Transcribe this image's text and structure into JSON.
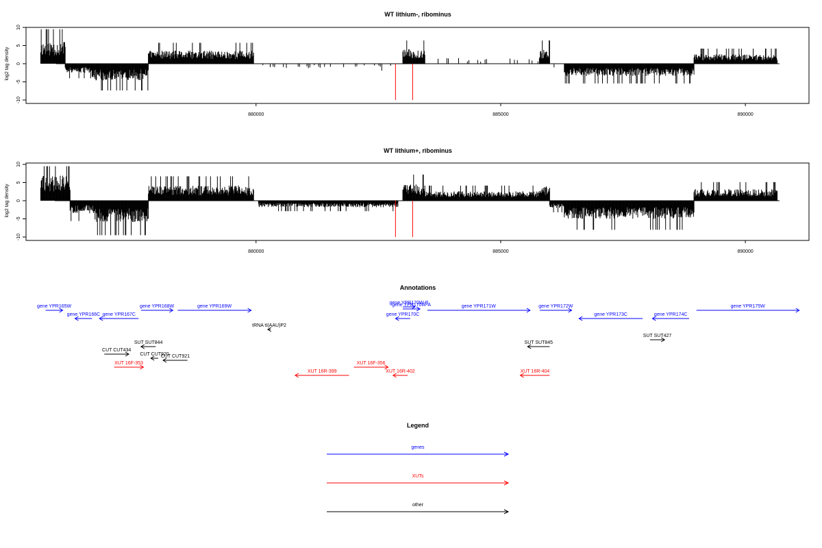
{
  "colors": {
    "genes": "#0000ff",
    "xuts": "#ff0000",
    "other": "#000000",
    "highlight": "#ff0000"
  },
  "chart_data": [
    {
      "type": "bar",
      "panel": "top",
      "title": "WT lithium-, ribominus",
      "xlabel": "",
      "ylabel": "log2 tag density",
      "xlim": [
        875300,
        891300
      ],
      "ylim": [
        -11,
        11
      ],
      "x_ticks": [
        {
          "value": 880000,
          "label": "880000"
        },
        {
          "value": 885000,
          "label": "885000"
        },
        {
          "value": 890000,
          "label": "890000"
        }
      ],
      "y_ticks": [
        {
          "value": 10,
          "label": "10"
        },
        {
          "value": 5,
          "label": "5"
        },
        {
          "value": 0,
          "label": "0"
        },
        {
          "value": -5,
          "label": "-5"
        },
        {
          "value": -10,
          "label": "-10"
        }
      ],
      "segments": [
        {
          "from": 875600,
          "to": 876100,
          "sign": 1,
          "amp": 6.2
        },
        {
          "from": 876100,
          "to": 876650,
          "sign": -1,
          "amp": 2.5
        },
        {
          "from": 876650,
          "to": 877800,
          "sign": -1,
          "amp": 4.6
        },
        {
          "from": 877800,
          "to": 879950,
          "sign": 1,
          "amp": 3.6
        },
        {
          "from": 880050,
          "to": 882900,
          "sign": -1,
          "amp": 1.2,
          "sparse": true
        },
        {
          "from": 883000,
          "to": 883450,
          "sign": 1,
          "amp": 4.0
        },
        {
          "from": 883450,
          "to": 885900,
          "sign": 1,
          "amp": 1.6,
          "sparse": true
        },
        {
          "from": 885800,
          "to": 886000,
          "sign": 1,
          "amp": 4.0
        },
        {
          "from": 886000,
          "to": 886300,
          "sign": -1,
          "amp": 1.5,
          "sparse": true
        },
        {
          "from": 886300,
          "to": 888950,
          "sign": -1,
          "amp": 3.4
        },
        {
          "from": 888950,
          "to": 890650,
          "sign": 1,
          "amp": 2.6
        }
      ],
      "highlights": [
        {
          "x": 882850,
          "y": -10
        },
        {
          "x": 883200,
          "y": -10
        }
      ]
    },
    {
      "type": "bar",
      "panel": "middle",
      "title": "WT lithium+, ribominus",
      "xlabel": "",
      "ylabel": "log2 tag density",
      "xlim": [
        875300,
        891300
      ],
      "ylim": [
        -11,
        11
      ],
      "x_ticks": [
        {
          "value": 880000,
          "label": "880000"
        },
        {
          "value": 885000,
          "label": "885000"
        },
        {
          "value": 890000,
          "label": "890000"
        }
      ],
      "y_ticks": [
        {
          "value": 10,
          "label": "10"
        },
        {
          "value": 5,
          "label": "5"
        },
        {
          "value": 0,
          "label": "0"
        },
        {
          "value": -5,
          "label": "-5"
        },
        {
          "value": -10,
          "label": "-10"
        }
      ],
      "segments": [
        {
          "from": 875600,
          "to": 876200,
          "sign": 1,
          "amp": 7.0
        },
        {
          "from": 876200,
          "to": 876700,
          "sign": -1,
          "amp": 3.5
        },
        {
          "from": 876700,
          "to": 877800,
          "sign": -1,
          "amp": 6.0
        },
        {
          "from": 877800,
          "to": 879950,
          "sign": 1,
          "amp": 4.2
        },
        {
          "from": 880050,
          "to": 882900,
          "sign": -1,
          "amp": 1.8
        },
        {
          "from": 883000,
          "to": 883450,
          "sign": 1,
          "amp": 4.5
        },
        {
          "from": 883450,
          "to": 885900,
          "sign": 1,
          "amp": 2.6
        },
        {
          "from": 885800,
          "to": 886000,
          "sign": 1,
          "amp": 4.0
        },
        {
          "from": 886000,
          "to": 886300,
          "sign": -1,
          "amp": 2.0
        },
        {
          "from": 886300,
          "to": 888950,
          "sign": -1,
          "amp": 5.0
        },
        {
          "from": 888950,
          "to": 890650,
          "sign": 1,
          "amp": 3.2
        }
      ],
      "highlights": [
        {
          "x": 882850,
          "y": -10
        },
        {
          "x": 883200,
          "y": -10
        }
      ]
    }
  ],
  "annotations": {
    "title": "Annotations",
    "features": [
      {
        "label": "gene YPR165W",
        "class": "genes",
        "x1": 875700,
        "x2": 876050,
        "strand": "+",
        "row": 0
      },
      {
        "label": "gene YPR166C",
        "class": "genes",
        "x1": 876300,
        "x2": 876650,
        "strand": "-",
        "row": 1
      },
      {
        "label": "gene YPR167C",
        "class": "genes",
        "x1": 876800,
        "x2": 877600,
        "strand": "-",
        "row": 1
      },
      {
        "label": "gene YPR168W",
        "class": "genes",
        "x1": 877650,
        "x2": 878300,
        "strand": "+",
        "row": 0
      },
      {
        "label": "gene YPR169W",
        "class": "genes",
        "x1": 878400,
        "x2": 879900,
        "strand": "+",
        "row": 0
      },
      {
        "label": "tRNA tI(AAU)P2",
        "class": "other",
        "x1": 880240,
        "x2": 880300,
        "strand": "-",
        "row": 2
      },
      {
        "label": "SUT SUT844",
        "class": "other",
        "x1": 877650,
        "x2": 877950,
        "strand": "-",
        "row": 3
      },
      {
        "label": "CUT CUT434",
        "class": "other",
        "x1": 876900,
        "x2": 877400,
        "strand": "+",
        "row": 4
      },
      {
        "label": "CUT CUT921",
        "class": "other",
        "x1": 878100,
        "x2": 878600,
        "strand": "-",
        "row": 5
      },
      {
        "label": "CUT CUT920",
        "class": "other",
        "x1": 877850,
        "x2": 878000,
        "strand": "-",
        "row": 6
      },
      {
        "label": "XUT 16F-353",
        "class": "xuts",
        "x1": 877100,
        "x2": 877700,
        "strand": "+",
        "row": 7
      },
      {
        "label": "XUT 16R-399",
        "class": "xuts",
        "x1": 880800,
        "x2": 881900,
        "strand": "-",
        "row": 8
      },
      {
        "label": "XUT 16F-356",
        "class": "xuts",
        "x1": 882000,
        "x2": 882700,
        "strand": "+",
        "row": 7
      },
      {
        "label": "XUT 16R-402",
        "class": "xuts",
        "x1": 882800,
        "x2": 883100,
        "strand": "-",
        "row": 8
      },
      {
        "label": "gene YPR170W-A",
        "class": "genes",
        "x1": 883000,
        "x2": 883350,
        "strand": "+",
        "row": 9
      },
      {
        "label": "gene YPR170W-B",
        "class": "genes",
        "x1": 883000,
        "x2": 883250,
        "strand": "+",
        "row": 10
      },
      {
        "label": "gene YPR170C",
        "class": "genes",
        "x1": 882850,
        "x2": 883150,
        "strand": "-",
        "row": 1
      },
      {
        "label": "gene YPR171W",
        "class": "genes",
        "x1": 883500,
        "x2": 885600,
        "strand": "+",
        "row": 0
      },
      {
        "label": "gene YPR172W",
        "class": "genes",
        "x1": 885800,
        "x2": 886450,
        "strand": "+",
        "row": 0
      },
      {
        "label": "gene YPR173C",
        "class": "genes",
        "x1": 886600,
        "x2": 887900,
        "strand": "-",
        "row": 1
      },
      {
        "label": "gene YPR174C",
        "class": "genes",
        "x1": 888100,
        "x2": 888850,
        "strand": "-",
        "row": 1
      },
      {
        "label": "gene YPR175W",
        "class": "genes",
        "x1": 889000,
        "x2": 891100,
        "strand": "+",
        "row": 0
      },
      {
        "label": "SUT SUT845",
        "class": "other",
        "x1": 885550,
        "x2": 886000,
        "strand": "-",
        "row": 3
      },
      {
        "label": "SUT SUT427",
        "class": "other",
        "x1": 888050,
        "x2": 888350,
        "strand": "+",
        "row": 11
      },
      {
        "label": "XUT 16R-404",
        "class": "xuts",
        "x1": 885400,
        "x2": 886000,
        "strand": "-",
        "row": 8
      }
    ]
  },
  "legend": {
    "title": "Legend",
    "items": [
      {
        "label": "genes",
        "class": "genes"
      },
      {
        "label": "XUTs",
        "class": "xuts"
      },
      {
        "label": "other",
        "class": "other"
      }
    ]
  }
}
